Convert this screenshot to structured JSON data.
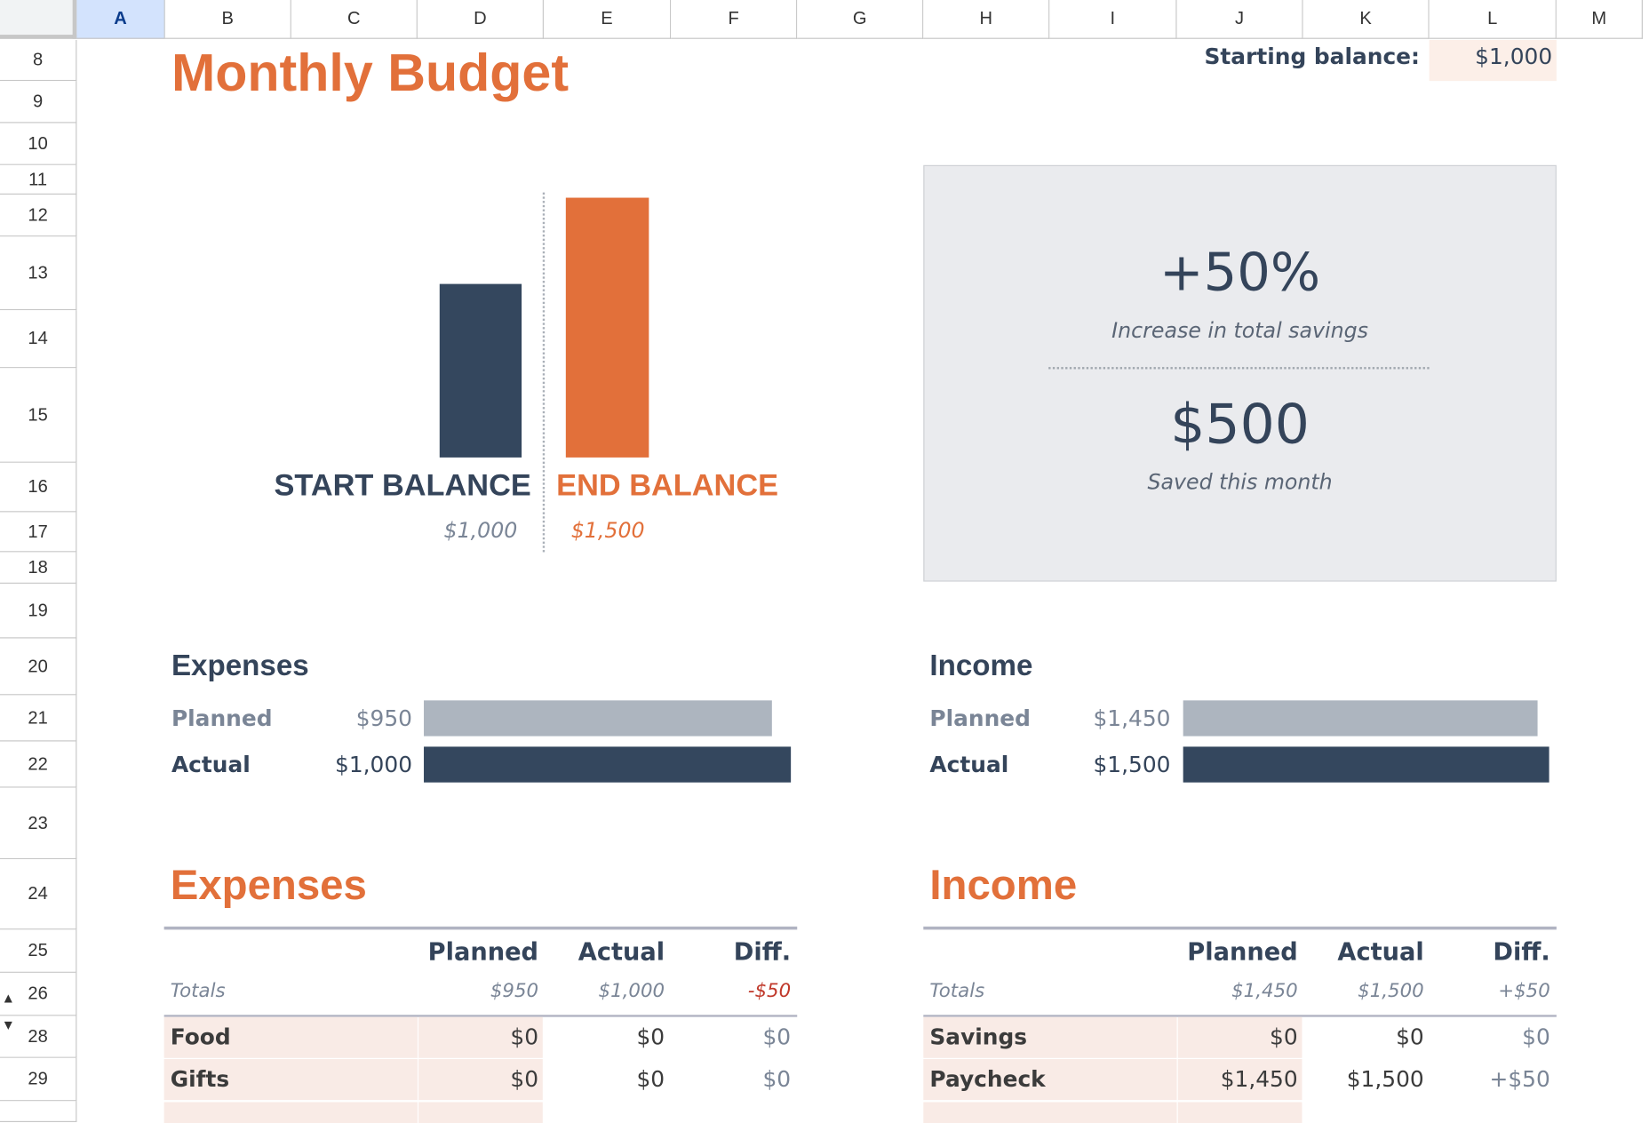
{
  "sheet": {
    "columns": [
      "A",
      "B",
      "C",
      "D",
      "E",
      "F",
      "G",
      "H",
      "I",
      "J",
      "K",
      "L",
      "M"
    ],
    "selected_column": "A",
    "rows": [
      "8",
      "9",
      "10",
      "11",
      "12",
      "13",
      "14",
      "15",
      "16",
      "17",
      "18",
      "19",
      "20",
      "21",
      "22",
      "23",
      "24",
      "25",
      "26",
      "28",
      "29"
    ]
  },
  "title": "Monthly Budget",
  "starting_balance": {
    "label": "Starting balance:",
    "value": "$1,000"
  },
  "balance_chart": {
    "start_label": "START BALANCE",
    "start_value": "$1,000",
    "end_label": "END BALANCE",
    "end_value": "$1,500"
  },
  "summary": {
    "percent": "+50%",
    "percent_caption": "Increase in total savings",
    "saved": "$500",
    "saved_caption": "Saved this month"
  },
  "expenses_bars": {
    "title": "Expenses",
    "planned_label": "Planned",
    "planned_value": "$950",
    "actual_label": "Actual",
    "actual_value": "$1,000"
  },
  "income_bars": {
    "title": "Income",
    "planned_label": "Planned",
    "planned_value": "$1,450",
    "actual_label": "Actual",
    "actual_value": "$1,500"
  },
  "expenses_table": {
    "title": "Expenses",
    "headers": [
      "Planned",
      "Actual",
      "Diff."
    ],
    "totals": {
      "label": "Totals",
      "planned": "$950",
      "actual": "$1,000",
      "diff": "-$50"
    },
    "rows": [
      {
        "name": "Food",
        "planned": "$0",
        "actual": "$0",
        "diff": "$0"
      },
      {
        "name": "Gifts",
        "planned": "$0",
        "actual": "$0",
        "diff": "$0"
      }
    ]
  },
  "income_table": {
    "title": "Income",
    "headers": [
      "Planned",
      "Actual",
      "Diff."
    ],
    "totals": {
      "label": "Totals",
      "planned": "$1,450",
      "actual": "$1,500",
      "diff": "+$50"
    },
    "rows": [
      {
        "name": "Savings",
        "planned": "$0",
        "actual": "$0",
        "diff": "$0"
      },
      {
        "name": "Paycheck",
        "planned": "$1,450",
        "actual": "$1,500",
        "diff": "+$50"
      }
    ]
  },
  "colors": {
    "accent": "#e2703a",
    "navy": "#34475e",
    "planned_bar": "#adb5bf",
    "negative": "#c0392b"
  }
}
